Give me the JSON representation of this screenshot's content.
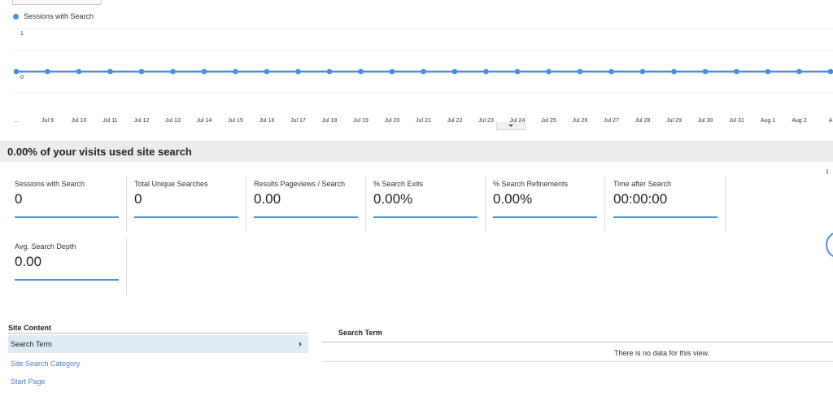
{
  "chart": {
    "legend_label": "Sessions with Search",
    "series_color": "#4a90d9"
  },
  "chart_data": {
    "type": "line",
    "title": "",
    "xlabel": "",
    "ylabel": "",
    "ylim": [
      0,
      1
    ],
    "y_ticks": [
      "1",
      "0"
    ],
    "x_ticks": [
      "...",
      "Jul 9",
      "Jul 10",
      "Jul 11",
      "Jul 12",
      "Jul 13",
      "Jul 14",
      "Jul 15",
      "Jul 16",
      "Jul 17",
      "Jul 18",
      "Jul 19",
      "Jul 20",
      "Jul 21",
      "Jul 22",
      "Jul 23",
      "Jul 24",
      "Jul 25",
      "Jul 26",
      "Jul 27",
      "Jul 28",
      "Jul 29",
      "Jul 30",
      "Jul 31",
      "Aug 1",
      "Aug 2",
      "A"
    ],
    "series": [
      {
        "name": "Sessions with Search",
        "values": [
          0,
          0,
          0,
          0,
          0,
          0,
          0,
          0,
          0,
          0,
          0,
          0,
          0,
          0,
          0,
          0,
          0,
          0,
          0,
          0,
          0,
          0,
          0,
          0,
          0,
          0,
          0
        ]
      }
    ]
  },
  "summary": {
    "title": "0.00% of your visits used site search"
  },
  "metrics": [
    {
      "label": "Sessions with Search",
      "value": "0"
    },
    {
      "label": "Total Unique Searches",
      "value": "0"
    },
    {
      "label": "Results Pageviews / Search",
      "value": "0.00"
    },
    {
      "label": "% Search Exits",
      "value": "0.00%"
    },
    {
      "label": "% Search Refinements",
      "value": "0.00%"
    },
    {
      "label": "Time after Search",
      "value": "00:00:00"
    },
    {
      "label": "Avg. Search Depth",
      "value": "0.00"
    }
  ],
  "site_content": {
    "title": "Site Content",
    "active_item": "Search Term",
    "links": [
      "Site Search Category",
      "Start Page"
    ]
  },
  "table": {
    "column_header": "Search Term",
    "empty_message": "There is no data for this view."
  }
}
